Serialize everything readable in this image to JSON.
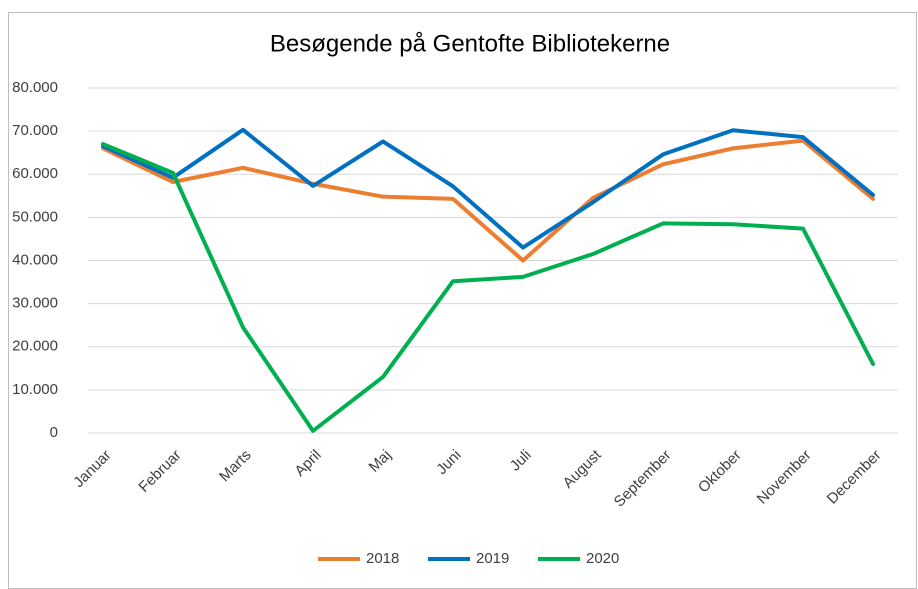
{
  "chart_data": {
    "type": "line",
    "title": "Besøgende på Gentofte Bibliotekerne",
    "categories": [
      "Januar",
      "Februar",
      "Marts",
      "April",
      "Maj",
      "Juni",
      "Juli",
      "August",
      "September",
      "Oktober",
      "November",
      "December"
    ],
    "series": [
      {
        "name": "2018",
        "color": "#ed7d31",
        "values": [
          66000,
          58200,
          61500,
          57800,
          54800,
          54300,
          40000,
          54500,
          62300,
          66000,
          67800,
          54300
        ]
      },
      {
        "name": "2019",
        "color": "#0070c0",
        "values": [
          66500,
          59200,
          70300,
          57300,
          67600,
          57200,
          43000,
          53500,
          64600,
          70200,
          68600,
          55200
        ]
      },
      {
        "name": "2020",
        "color": "#00b050",
        "values": [
          67000,
          60300,
          24500,
          500,
          13000,
          35200,
          36200,
          41500,
          48600,
          48400,
          47400,
          16000
        ]
      }
    ],
    "ylim": [
      0,
      80000
    ],
    "yticks": [
      0,
      {
        "value": 10000,
        "label": "10.000"
      },
      {
        "value": 20000,
        "label": "20.000"
      },
      {
        "value": 30000,
        "label": "30.000"
      },
      {
        "value": 40000,
        "label": "40.000"
      },
      {
        "value": 50000,
        "label": "50.000"
      },
      {
        "value": 60000,
        "label": "60.000"
      },
      {
        "value": 70000,
        "label": "70.000"
      },
      {
        "value": 80000,
        "label": "80.000"
      }
    ],
    "grid": true,
    "legend": "bottom"
  }
}
